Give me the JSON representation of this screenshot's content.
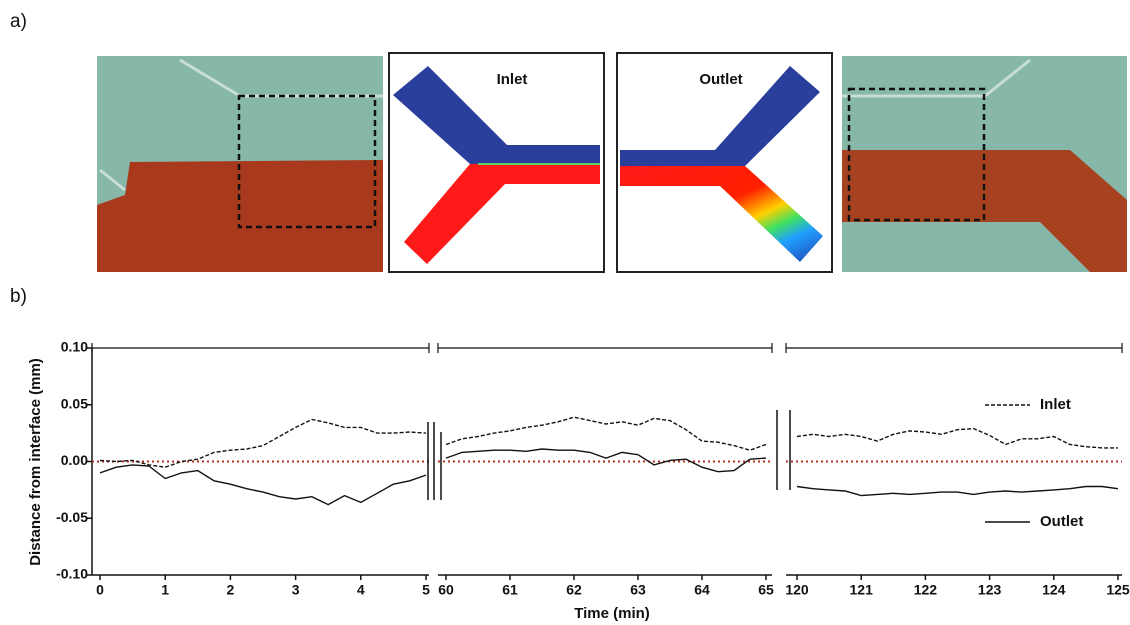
{
  "figure_labels": [
    "a)",
    "b)"
  ],
  "panel_a": {
    "inlet_label": "Inlet",
    "outlet_label": "Outlet"
  },
  "chart_data": {
    "type": "line",
    "xlabel": "Time (min)",
    "ylabel": "Distance from interface (mm)",
    "ylim": [
      -0.1,
      0.1
    ],
    "yticks": [
      {
        "value": -0.1,
        "label": "-0.10"
      },
      -0.05,
      {
        "value": 0,
        "label": "0.00"
      },
      0.05,
      {
        "value": 0.1,
        "label": "0.10"
      }
    ],
    "hline": {
      "value": 0,
      "color": "#b03020"
    },
    "legend": "right",
    "segments": [
      {
        "xlim": [
          0,
          5
        ],
        "xticks": [
          0,
          1,
          2,
          3,
          4,
          5
        ],
        "x": [
          0,
          0.25,
          0.5,
          0.75,
          1,
          1.25,
          1.5,
          1.75,
          2,
          2.25,
          2.5,
          2.75,
          3,
          3.25,
          3.5,
          3.75,
          4,
          4.25,
          4.5,
          4.75,
          5
        ],
        "series": [
          {
            "name": "Inlet",
            "color": "#111111",
            "dash": true,
            "values": [
              0.001,
              0.0,
              0.001,
              -0.003,
              -0.005,
              0.0,
              0.002,
              0.008,
              0.01,
              0.011,
              0.014,
              0.022,
              0.03,
              0.037,
              0.034,
              0.03,
              0.03,
              0.025,
              0.025,
              0.026,
              0.025
            ]
          },
          {
            "name": "Outlet",
            "color": "#111111",
            "dash": false,
            "values": [
              -0.01,
              -0.005,
              -0.003,
              -0.004,
              -0.015,
              -0.01,
              -0.008,
              -0.017,
              -0.02,
              -0.024,
              -0.027,
              -0.031,
              -0.033,
              -0.031,
              -0.038,
              -0.03,
              -0.036,
              -0.028,
              -0.02,
              -0.017,
              -0.012
            ]
          }
        ]
      },
      {
        "xlim": [
          60,
          65
        ],
        "xticks": [
          60,
          61,
          62,
          63,
          64,
          65
        ],
        "x": [
          60,
          60.25,
          60.5,
          60.75,
          61,
          61.25,
          61.5,
          61.75,
          62,
          62.25,
          62.5,
          62.75,
          63,
          63.25,
          63.5,
          63.75,
          64,
          64.25,
          64.5,
          64.75,
          65
        ],
        "series": [
          {
            "name": "Inlet",
            "color": "#111111",
            "dash": true,
            "values": [
              0.015,
              0.02,
              0.022,
              0.025,
              0.027,
              0.03,
              0.032,
              0.035,
              0.039,
              0.036,
              0.033,
              0.035,
              0.032,
              0.038,
              0.036,
              0.028,
              0.018,
              0.017,
              0.014,
              0.01,
              0.015
            ]
          },
          {
            "name": "Outlet",
            "color": "#111111",
            "dash": false,
            "values": [
              0.003,
              0.008,
              0.009,
              0.01,
              0.01,
              0.009,
              0.011,
              0.01,
              0.01,
              0.008,
              0.003,
              0.008,
              0.006,
              -0.003,
              0.001,
              0.002,
              -0.005,
              -0.009,
              -0.008,
              0.002,
              0.003
            ]
          }
        ]
      },
      {
        "xlim": [
          120,
          125
        ],
        "xticks": [
          120,
          121,
          122,
          123,
          124,
          125
        ],
        "x": [
          120,
          120.25,
          120.5,
          120.75,
          121,
          121.25,
          121.5,
          121.75,
          122,
          122.25,
          122.5,
          122.75,
          123,
          123.25,
          123.5,
          123.75,
          124,
          124.25,
          124.5,
          124.75,
          125
        ],
        "series": [
          {
            "name": "Inlet",
            "color": "#111111",
            "dash": true,
            "values": [
              0.022,
              0.024,
              0.022,
              0.024,
              0.022,
              0.018,
              0.024,
              0.027,
              0.026,
              0.024,
              0.028,
              0.029,
              0.023,
              0.015,
              0.02,
              0.02,
              0.022,
              0.015,
              0.013,
              0.012,
              0.012
            ]
          },
          {
            "name": "Outlet",
            "color": "#111111",
            "dash": false,
            "values": [
              -0.022,
              -0.024,
              -0.025,
              -0.026,
              -0.03,
              -0.029,
              -0.028,
              -0.029,
              -0.028,
              -0.027,
              -0.027,
              -0.029,
              -0.027,
              -0.026,
              -0.027,
              -0.026,
              -0.025,
              -0.024,
              -0.022,
              -0.022,
              -0.024
            ]
          }
        ]
      }
    ]
  }
}
